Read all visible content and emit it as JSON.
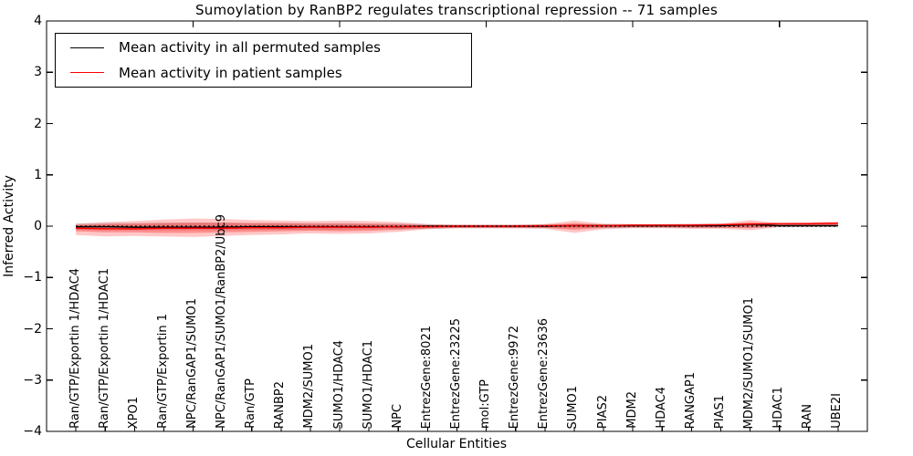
{
  "title": "Sumoylation by RanBP2 regulates transcriptional repression -- 71 samples",
  "legend": {
    "items": [
      {
        "label": "Mean activity in all permuted samples",
        "color": "#000000"
      },
      {
        "label": "Mean activity in patient samples",
        "color": "#ff0000"
      }
    ]
  },
  "axes": {
    "ylabel": "Inferred Activity",
    "xlabel": "Cellular Entities",
    "ytick_labels": [
      "4",
      "3",
      "2",
      "1",
      "0",
      "−1",
      "−2",
      "−3",
      "−4"
    ]
  },
  "chart_data": {
    "type": "line",
    "title": "Sumoylation by RanBP2 regulates transcriptional repression -- 71 samples",
    "xlabel": "Cellular Entities",
    "ylabel": "Inferred Activity",
    "ylim": [
      -4,
      4
    ],
    "yticks": [
      4,
      3,
      2,
      1,
      0,
      -1,
      -2,
      -3,
      -4
    ],
    "x_major_ticks": [
      5,
      10,
      15,
      20,
      25
    ],
    "legend_position": "upper left",
    "grid": false,
    "categories": [
      "Ran/GTP/Exportin 1/HDAC4",
      "Ran/GTP/Exportin 1/HDAC1",
      "XPO1",
      "Ran/GTP/Exportin 1",
      "NPC/RanGAP1/SUMO1",
      "NPC/RanGAP1/SUMO1/RanBP2/Ubc9",
      "Ran/GTP",
      "RANBP2",
      "MDM2/SUMO1",
      "SUMO1/HDAC4",
      "SUMO1/HDAC1",
      "NPC",
      "EntrezGene:8021",
      "EntrezGene:23225",
      "mol:GTP",
      "EntrezGene:9972",
      "EntrezGene:23636",
      "SUMO1",
      "PIAS2",
      "MDM2",
      "HDAC4",
      "RANGAP1",
      "PIAS1",
      "MDM2/SUMO1/SUMO1",
      "HDAC1",
      "RAN",
      "UBE2I"
    ],
    "series": [
      {
        "name": "Mean activity in all permuted samples",
        "color": "#000000",
        "style": "solid",
        "values": [
          -0.01,
          -0.01,
          -0.02,
          -0.02,
          -0.02,
          -0.02,
          -0.01,
          -0.01,
          -0.01,
          -0.01,
          -0.01,
          -0.01,
          0,
          0,
          0,
          0,
          0,
          0.01,
          0.01,
          0.01,
          0.01,
          0.01,
          0.01,
          0.03,
          0.01,
          0.01,
          0.01
        ]
      },
      {
        "name": "Mean activity in patient samples",
        "color": "#ff0000",
        "style": "solid",
        "values": [
          -0.04,
          -0.05,
          -0.05,
          -0.04,
          -0.04,
          -0.04,
          -0.03,
          -0.03,
          -0.02,
          -0.02,
          -0.02,
          -0.01,
          -0.01,
          0,
          0,
          0,
          0.01,
          0.01,
          0.01,
          0.02,
          0.02,
          0.02,
          0.03,
          0.04,
          0.05,
          0.05,
          0.06
        ]
      }
    ],
    "bands": [
      {
        "name": "permuted-spread",
        "color": "#999999",
        "opacity": 0.4,
        "upper": [
          0.05,
          0.06,
          0.06,
          0.07,
          0.07,
          0.07,
          0.06,
          0.06,
          0.06,
          0.06,
          0.05,
          0.05,
          0.04,
          0.03,
          0.03,
          0.03,
          0.04,
          0.04,
          0.04,
          0.04,
          0.04,
          0.04,
          0.04,
          0.05,
          0.04,
          0.04,
          0.04
        ],
        "lower": [
          -0.07,
          -0.08,
          -0.08,
          -0.08,
          -0.08,
          -0.08,
          -0.07,
          -0.07,
          -0.07,
          -0.07,
          -0.06,
          -0.06,
          -0.05,
          -0.04,
          -0.04,
          -0.04,
          -0.04,
          -0.04,
          -0.04,
          -0.03,
          -0.03,
          -0.03,
          -0.03,
          -0.03,
          -0.02,
          -0.02,
          -0.02
        ]
      },
      {
        "name": "patient-spread-outer",
        "color": "#ff0000",
        "opacity": 0.22,
        "upper": [
          0.05,
          0.08,
          0.1,
          0.13,
          0.15,
          0.14,
          0.12,
          0.11,
          0.1,
          0.11,
          0.1,
          0.08,
          0.04,
          0.03,
          0.03,
          0.03,
          0.04,
          0.11,
          0.05,
          0.04,
          0.04,
          0.05,
          0.05,
          0.12,
          0.06,
          0.07,
          0.08
        ],
        "lower": [
          -0.17,
          -0.2,
          -0.19,
          -0.2,
          -0.21,
          -0.19,
          -0.17,
          -0.16,
          -0.14,
          -0.15,
          -0.14,
          -0.11,
          -0.06,
          -0.04,
          -0.04,
          -0.04,
          -0.05,
          -0.13,
          -0.06,
          -0.04,
          -0.04,
          -0.05,
          -0.05,
          -0.08,
          -0.02,
          -0.01,
          0.0
        ]
      },
      {
        "name": "patient-spread-inner",
        "color": "#ff0000",
        "opacity": 0.28,
        "upper": [
          0.02,
          0.04,
          0.05,
          0.06,
          0.07,
          0.07,
          0.06,
          0.06,
          0.05,
          0.05,
          0.05,
          0.04,
          0.02,
          0.02,
          0.02,
          0.02,
          0.02,
          0.06,
          0.03,
          0.02,
          0.02,
          0.03,
          0.03,
          0.08,
          0.04,
          0.05,
          0.06
        ],
        "lower": [
          -0.1,
          -0.12,
          -0.12,
          -0.13,
          -0.13,
          -0.12,
          -0.11,
          -0.1,
          -0.09,
          -0.1,
          -0.09,
          -0.07,
          -0.04,
          -0.03,
          -0.03,
          -0.03,
          -0.03,
          -0.07,
          -0.03,
          -0.02,
          -0.02,
          -0.03,
          -0.03,
          -0.04,
          0.0,
          0.01,
          0.02
        ]
      }
    ],
    "zero_line": {
      "y": 0,
      "style": "dotted",
      "color": "#000000"
    }
  }
}
